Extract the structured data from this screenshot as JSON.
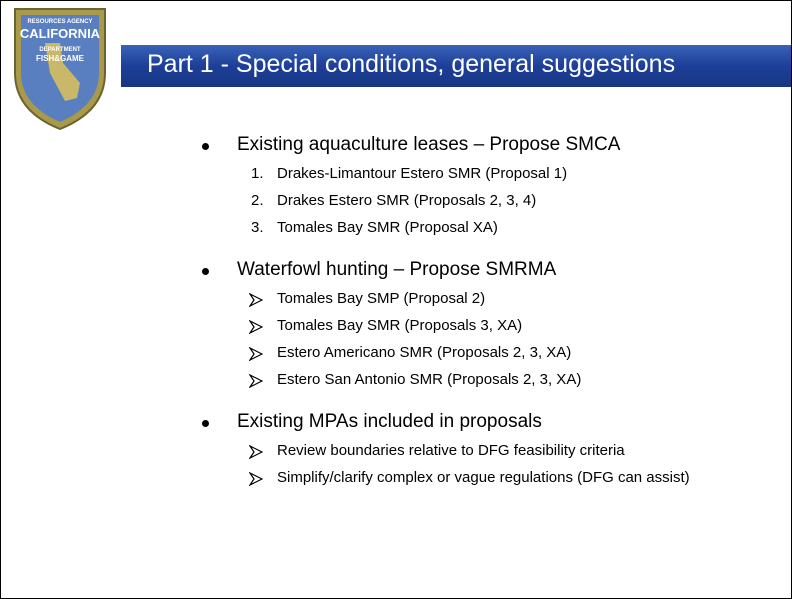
{
  "logo": {
    "lines": [
      "RESOURCES AGENCY",
      "CALIFORNIA",
      "DEPARTMENT",
      "FISH&GAME"
    ]
  },
  "title": "Part 1 - Special conditions, general suggestions",
  "sections": [
    {
      "heading": "Existing aquaculture leases – Propose SMCA",
      "list_style": "numbered",
      "items": [
        {
          "number": "1.",
          "text": "Drakes-Limantour Estero SMR (Proposal 1)"
        },
        {
          "number": "2.",
          "text": "Drakes Estero SMR (Proposals 2, 3, 4)"
        },
        {
          "number": "3.",
          "text": "Tomales Bay SMR (Proposal XA)"
        }
      ]
    },
    {
      "heading": "Waterfowl hunting – Propose SMRMA",
      "list_style": "arrow",
      "items": [
        {
          "text": "Tomales Bay SMP (Proposal 2)"
        },
        {
          "text": "Tomales Bay SMR (Proposals 3, XA)"
        },
        {
          "text": "Estero Americano SMR (Proposals 2, 3, XA)"
        },
        {
          "text": "Estero San Antonio SMR (Proposals 2, 3, XA)"
        }
      ]
    },
    {
      "heading": "Existing MPAs included in proposals",
      "list_style": "arrow",
      "items": [
        {
          "text": "Review boundaries relative to DFG feasibility criteria"
        },
        {
          "text": "Simplify/clarify complex or vague regulations (DFG can assist)"
        }
      ]
    }
  ]
}
